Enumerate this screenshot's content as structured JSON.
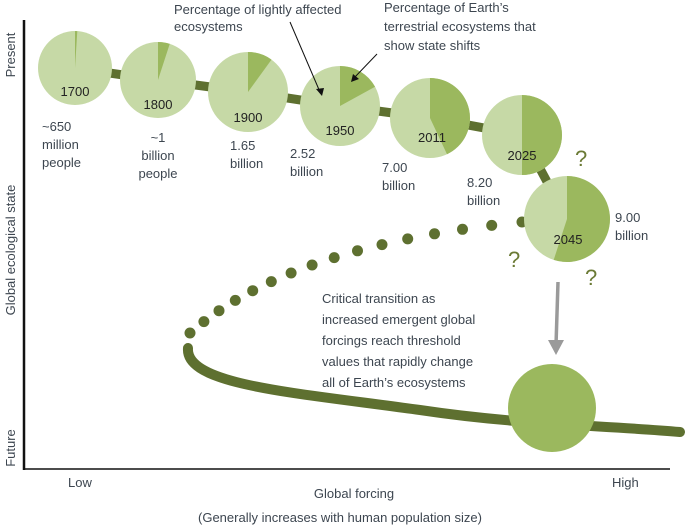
{
  "colors": {
    "light": "#c6d9a6",
    "dark": "#9bb85e",
    "line": "#5e7030",
    "arrow": "#9a9a9a",
    "axis": "#111111"
  },
  "axes": {
    "y_label": "Global ecological state",
    "y_top": "Present",
    "y_bottom": "Future",
    "x_label": "Global forcing",
    "x_sublabel": "(Generally increases with human population size)",
    "x_low": "Low",
    "x_high": "High"
  },
  "annotations": {
    "lightly_affected": [
      "Percentage of lightly affected",
      "ecosystems"
    ],
    "state_shifts": [
      "Percentage of Earth’s",
      "terrestrial ecosystems that",
      "show state shifts"
    ],
    "transition": [
      "Critical transition as",
      "increased emergent global",
      "forcings reach threshold",
      "values that rapidly change",
      "all of Earth’s ecosystems"
    ],
    "question": "?"
  },
  "pies": [
    {
      "year": "1700",
      "shifted_pct": 1,
      "population": [
        "~650",
        "million",
        "people"
      ]
    },
    {
      "year": "1800",
      "shifted_pct": 5,
      "population": [
        "~1",
        "billion",
        "people"
      ]
    },
    {
      "year": "1900",
      "shifted_pct": 10,
      "population": [
        "1.65",
        "billion"
      ]
    },
    {
      "year": "1950",
      "shifted_pct": 17,
      "population": [
        "2.52",
        "billion"
      ]
    },
    {
      "year": "2011",
      "shifted_pct": 43,
      "population": [
        "7.00",
        "billion"
      ]
    },
    {
      "year": "2025",
      "shifted_pct": 50,
      "population": [
        "8.20",
        "billion"
      ]
    },
    {
      "year": "2045",
      "shifted_pct": 55,
      "population": [
        "9.00",
        "billion"
      ]
    }
  ]
}
